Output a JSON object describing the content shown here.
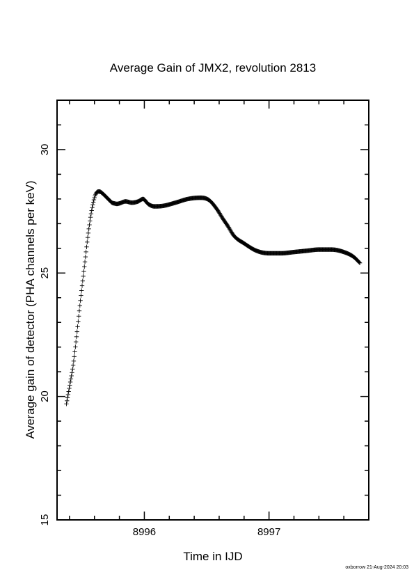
{
  "chart_data": {
    "type": "scatter",
    "marker": "plus",
    "title": "Average Gain of JMX2, revolution 2813",
    "xlabel": "Time in IJD",
    "ylabel": "Average gain of detector (PHA channels per keV)",
    "xlim": [
      8995.3,
      8997.8
    ],
    "ylim": [
      15,
      32
    ],
    "x_ticks": [
      {
        "value": 8996,
        "label": "8996"
      },
      {
        "value": 8997,
        "label": "8997"
      }
    ],
    "y_ticks": [
      {
        "value": 15,
        "label": "15"
      },
      {
        "value": 20,
        "label": "20"
      },
      {
        "value": 25,
        "label": "25"
      },
      {
        "value": 30,
        "label": "30"
      }
    ],
    "grid": false,
    "series": [
      {
        "color": "#000000",
        "x": [
          8995.375,
          8995.4,
          8995.43,
          8995.46,
          8995.49,
          8995.52,
          8995.55,
          8995.58,
          8995.61,
          8995.64,
          8995.67,
          8995.7,
          8995.72,
          8995.74,
          8995.76,
          8995.78,
          8995.8,
          8995.85,
          8995.9,
          8995.95,
          8995.99,
          8996.03,
          8996.08,
          8996.15,
          8996.25,
          8996.35,
          8996.45,
          8996.52,
          8996.58,
          8996.63,
          8996.67,
          8996.72,
          8996.8,
          8996.9,
          8997.0,
          8997.1,
          8997.2,
          8997.3,
          8997.4,
          8997.5,
          8997.6,
          8997.68,
          8997.73
        ],
        "y": [
          19.7,
          20.4,
          21.3,
          22.6,
          24.0,
          25.3,
          26.6,
          27.6,
          28.2,
          28.3,
          28.2,
          28.05,
          27.95,
          27.85,
          27.82,
          27.8,
          27.82,
          27.9,
          27.85,
          27.9,
          28.0,
          27.8,
          27.7,
          27.72,
          27.85,
          28.0,
          28.05,
          27.95,
          27.6,
          27.2,
          26.9,
          26.5,
          26.2,
          25.9,
          25.8,
          25.8,
          25.85,
          25.9,
          25.95,
          25.95,
          25.85,
          25.65,
          25.4
        ]
      }
    ]
  },
  "footer": {
    "stamp": "oxborrow 21-Aug-2024 20:03"
  }
}
